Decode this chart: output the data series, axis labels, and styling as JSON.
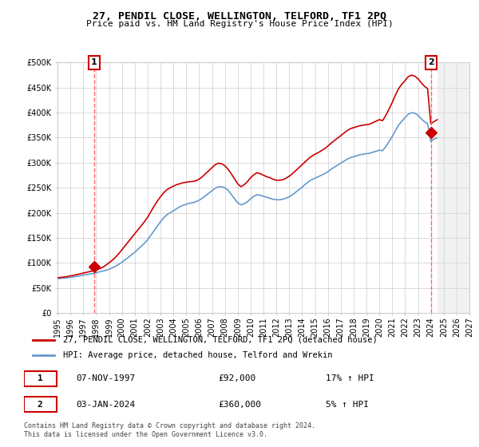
{
  "title": "27, PENDIL CLOSE, WELLINGTON, TELFORD, TF1 2PQ",
  "subtitle": "Price paid vs. HM Land Registry's House Price Index (HPI)",
  "legend_line1": "27, PENDIL CLOSE, WELLINGTON, TELFORD, TF1 2PQ (detached house)",
  "legend_line2": "HPI: Average price, detached house, Telford and Wrekin",
  "transaction1_label": "1",
  "transaction1_date": "07-NOV-1997",
  "transaction1_price": "£92,000",
  "transaction1_hpi": "17% ↑ HPI",
  "transaction2_label": "2",
  "transaction2_date": "03-JAN-2024",
  "transaction2_price": "£360,000",
  "transaction2_hpi": "5% ↑ HPI",
  "footnote": "Contains HM Land Registry data © Crown copyright and database right 2024.\nThis data is licensed under the Open Government Licence v3.0.",
  "sale_color": "#cc0000",
  "hpi_color": "#6699cc",
  "dashed_line_color": "#ff6666",
  "marker_color": "#cc0000",
  "ylim_min": 0,
  "ylim_max": 500000,
  "yticks": [
    0,
    50000,
    100000,
    150000,
    200000,
    250000,
    300000,
    350000,
    400000,
    450000,
    500000
  ],
  "x_start_year": 1995,
  "x_end_year": 2027,
  "sale1_year": 1997.85,
  "sale1_price": 92000,
  "sale2_year": 2024.02,
  "sale2_price": 360000,
  "background_color": "#ffffff",
  "grid_color": "#cccccc",
  "hpi_index_values": [
    [
      1995.0,
      68000
    ],
    [
      1995.25,
      69000
    ],
    [
      1995.5,
      69500
    ],
    [
      1995.75,
      70000
    ],
    [
      1996.0,
      71000
    ],
    [
      1996.25,
      72000
    ],
    [
      1996.5,
      73000
    ],
    [
      1996.75,
      74000
    ],
    [
      1997.0,
      75500
    ],
    [
      1997.25,
      76500
    ],
    [
      1997.5,
      77500
    ],
    [
      1997.75,
      78500
    ],
    [
      1998.0,
      80000
    ],
    [
      1998.25,
      82000
    ],
    [
      1998.5,
      83500
    ],
    [
      1998.75,
      85000
    ],
    [
      1999.0,
      87000
    ],
    [
      1999.25,
      90000
    ],
    [
      1999.5,
      93000
    ],
    [
      1999.75,
      97000
    ],
    [
      2000.0,
      101000
    ],
    [
      2000.25,
      106000
    ],
    [
      2000.5,
      111000
    ],
    [
      2000.75,
      116000
    ],
    [
      2001.0,
      121000
    ],
    [
      2001.25,
      127000
    ],
    [
      2001.5,
      133000
    ],
    [
      2001.75,
      139000
    ],
    [
      2002.0,
      146000
    ],
    [
      2002.25,
      155000
    ],
    [
      2002.5,
      164000
    ],
    [
      2002.75,
      173000
    ],
    [
      2003.0,
      182000
    ],
    [
      2003.25,
      190000
    ],
    [
      2003.5,
      196000
    ],
    [
      2003.75,
      200000
    ],
    [
      2004.0,
      204000
    ],
    [
      2004.25,
      208000
    ],
    [
      2004.5,
      212000
    ],
    [
      2004.75,
      215000
    ],
    [
      2005.0,
      217000
    ],
    [
      2005.25,
      219000
    ],
    [
      2005.5,
      220000
    ],
    [
      2005.75,
      222000
    ],
    [
      2006.0,
      225000
    ],
    [
      2006.25,
      229000
    ],
    [
      2006.5,
      234000
    ],
    [
      2006.75,
      239000
    ],
    [
      2007.0,
      244000
    ],
    [
      2007.25,
      249000
    ],
    [
      2007.5,
      252000
    ],
    [
      2007.75,
      252000
    ],
    [
      2008.0,
      250000
    ],
    [
      2008.25,
      245000
    ],
    [
      2008.5,
      237000
    ],
    [
      2008.75,
      228000
    ],
    [
      2009.0,
      220000
    ],
    [
      2009.25,
      216000
    ],
    [
      2009.5,
      218000
    ],
    [
      2009.75,
      222000
    ],
    [
      2010.0,
      228000
    ],
    [
      2010.25,
      233000
    ],
    [
      2010.5,
      236000
    ],
    [
      2010.75,
      235000
    ],
    [
      2011.0,
      233000
    ],
    [
      2011.25,
      231000
    ],
    [
      2011.5,
      229000
    ],
    [
      2011.75,
      227000
    ],
    [
      2012.0,
      226000
    ],
    [
      2012.25,
      226000
    ],
    [
      2012.5,
      227000
    ],
    [
      2012.75,
      229000
    ],
    [
      2013.0,
      232000
    ],
    [
      2013.25,
      236000
    ],
    [
      2013.5,
      241000
    ],
    [
      2013.75,
      246000
    ],
    [
      2014.0,
      251000
    ],
    [
      2014.25,
      257000
    ],
    [
      2014.5,
      262000
    ],
    [
      2014.75,
      266000
    ],
    [
      2015.0,
      269000
    ],
    [
      2015.25,
      272000
    ],
    [
      2015.5,
      275000
    ],
    [
      2015.75,
      278000
    ],
    [
      2016.0,
      282000
    ],
    [
      2016.25,
      287000
    ],
    [
      2016.5,
      291000
    ],
    [
      2016.75,
      295000
    ],
    [
      2017.0,
      299000
    ],
    [
      2017.25,
      303000
    ],
    [
      2017.5,
      307000
    ],
    [
      2017.75,
      310000
    ],
    [
      2018.0,
      312000
    ],
    [
      2018.25,
      314000
    ],
    [
      2018.5,
      316000
    ],
    [
      2018.75,
      317000
    ],
    [
      2019.0,
      318000
    ],
    [
      2019.25,
      319000
    ],
    [
      2019.5,
      321000
    ],
    [
      2019.75,
      323000
    ],
    [
      2020.0,
      325000
    ],
    [
      2020.25,
      324000
    ],
    [
      2020.5,
      332000
    ],
    [
      2020.75,
      342000
    ],
    [
      2021.0,
      352000
    ],
    [
      2021.25,
      364000
    ],
    [
      2021.5,
      375000
    ],
    [
      2021.75,
      383000
    ],
    [
      2022.0,
      390000
    ],
    [
      2022.25,
      397000
    ],
    [
      2022.5,
      400000
    ],
    [
      2022.75,
      399000
    ],
    [
      2023.0,
      395000
    ],
    [
      2023.25,
      388000
    ],
    [
      2023.5,
      382000
    ],
    [
      2023.75,
      378000
    ],
    [
      2024.0,
      343000
    ],
    [
      2024.25,
      347000
    ],
    [
      2024.5,
      350000
    ]
  ],
  "price_line_values": [
    [
      1995.0,
      70000
    ],
    [
      1995.25,
      71000
    ],
    [
      1995.5,
      71500
    ],
    [
      1995.75,
      72500
    ],
    [
      1996.0,
      74000
    ],
    [
      1996.25,
      75000
    ],
    [
      1996.5,
      76500
    ],
    [
      1996.75,
      78000
    ],
    [
      1997.0,
      79500
    ],
    [
      1997.25,
      81000
    ],
    [
      1997.5,
      82500
    ],
    [
      1997.75,
      84000
    ],
    [
      1998.0,
      86000
    ],
    [
      1998.25,
      88000
    ],
    [
      1998.5,
      91000
    ],
    [
      1998.75,
      95000
    ],
    [
      1999.0,
      100000
    ],
    [
      1999.25,
      105000
    ],
    [
      1999.5,
      111000
    ],
    [
      1999.75,
      118000
    ],
    [
      2000.0,
      126000
    ],
    [
      2000.25,
      134000
    ],
    [
      2000.5,
      142000
    ],
    [
      2000.75,
      150000
    ],
    [
      2001.0,
      158000
    ],
    [
      2001.25,
      166000
    ],
    [
      2001.5,
      174000
    ],
    [
      2001.75,
      182000
    ],
    [
      2002.0,
      191000
    ],
    [
      2002.25,
      202000
    ],
    [
      2002.5,
      213000
    ],
    [
      2002.75,
      223000
    ],
    [
      2003.0,
      232000
    ],
    [
      2003.25,
      240000
    ],
    [
      2003.5,
      246000
    ],
    [
      2003.75,
      250000
    ],
    [
      2004.0,
      253000
    ],
    [
      2004.25,
      256000
    ],
    [
      2004.5,
      258000
    ],
    [
      2004.75,
      260000
    ],
    [
      2005.0,
      261000
    ],
    [
      2005.25,
      262000
    ],
    [
      2005.5,
      262500
    ],
    [
      2005.75,
      264000
    ],
    [
      2006.0,
      267000
    ],
    [
      2006.25,
      272000
    ],
    [
      2006.5,
      278000
    ],
    [
      2006.75,
      284000
    ],
    [
      2007.0,
      290000
    ],
    [
      2007.25,
      296000
    ],
    [
      2007.5,
      299000
    ],
    [
      2007.75,
      298000
    ],
    [
      2008.0,
      294000
    ],
    [
      2008.25,
      287000
    ],
    [
      2008.5,
      278000
    ],
    [
      2008.75,
      268000
    ],
    [
      2009.0,
      258000
    ],
    [
      2009.25,
      252000
    ],
    [
      2009.5,
      256000
    ],
    [
      2009.75,
      262000
    ],
    [
      2010.0,
      270000
    ],
    [
      2010.25,
      276000
    ],
    [
      2010.5,
      280000
    ],
    [
      2010.75,
      278000
    ],
    [
      2011.0,
      275000
    ],
    [
      2011.25,
      272000
    ],
    [
      2011.5,
      270000
    ],
    [
      2011.75,
      267000
    ],
    [
      2012.0,
      265000
    ],
    [
      2012.25,
      265000
    ],
    [
      2012.5,
      266000
    ],
    [
      2012.75,
      269000
    ],
    [
      2013.0,
      273000
    ],
    [
      2013.25,
      278000
    ],
    [
      2013.5,
      284000
    ],
    [
      2013.75,
      290000
    ],
    [
      2014.0,
      296000
    ],
    [
      2014.25,
      302000
    ],
    [
      2014.5,
      308000
    ],
    [
      2014.75,
      313000
    ],
    [
      2015.0,
      317000
    ],
    [
      2015.25,
      320000
    ],
    [
      2015.5,
      324000
    ],
    [
      2015.75,
      328000
    ],
    [
      2016.0,
      333000
    ],
    [
      2016.25,
      339000
    ],
    [
      2016.5,
      344000
    ],
    [
      2016.75,
      349000
    ],
    [
      2017.0,
      354000
    ],
    [
      2017.25,
      359000
    ],
    [
      2017.5,
      364000
    ],
    [
      2017.75,
      368000
    ],
    [
      2018.0,
      370000
    ],
    [
      2018.25,
      372000
    ],
    [
      2018.5,
      374000
    ],
    [
      2018.75,
      375000
    ],
    [
      2019.0,
      376000
    ],
    [
      2019.25,
      377000
    ],
    [
      2019.5,
      380000
    ],
    [
      2019.75,
      383000
    ],
    [
      2020.0,
      386000
    ],
    [
      2020.25,
      384000
    ],
    [
      2020.5,
      394000
    ],
    [
      2020.75,
      407000
    ],
    [
      2021.0,
      420000
    ],
    [
      2021.25,
      435000
    ],
    [
      2021.5,
      448000
    ],
    [
      2021.75,
      457000
    ],
    [
      2022.0,
      464000
    ],
    [
      2022.25,
      472000
    ],
    [
      2022.5,
      475000
    ],
    [
      2022.75,
      473000
    ],
    [
      2023.0,
      468000
    ],
    [
      2023.25,
      460000
    ],
    [
      2023.5,
      453000
    ],
    [
      2023.75,
      448000
    ],
    [
      2024.0,
      378000
    ],
    [
      2024.25,
      382000
    ],
    [
      2024.5,
      386000
    ]
  ]
}
